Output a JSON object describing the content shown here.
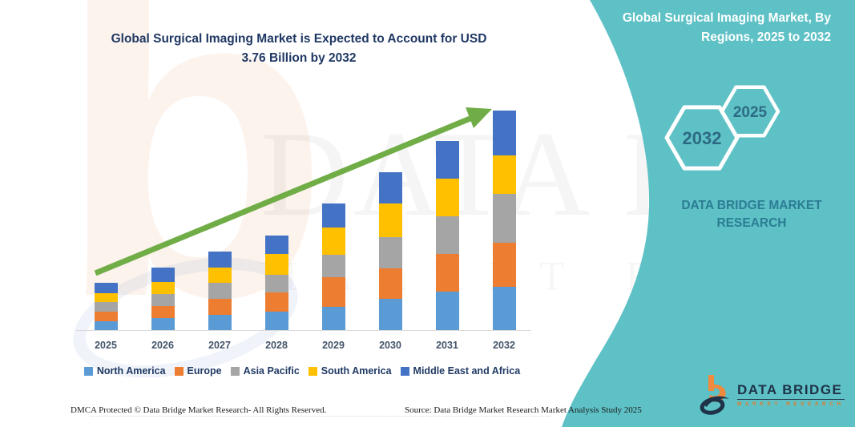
{
  "title": {
    "line1": "Global Surgical Imaging Market is Expected to Account for USD",
    "line2": "3.76 Billion by 2032"
  },
  "panel": {
    "heading_line1": "Global Surgical Imaging Market, By",
    "heading_line2": "Regions, 2025 to 2032",
    "hexagons": [
      {
        "label": "2032"
      },
      {
        "label": "2025"
      }
    ],
    "brand_line1": "DATA BRIDGE MARKET",
    "brand_line2": "RESEARCH",
    "panel_color": "#5ec1c6"
  },
  "chart_data": {
    "type": "bar",
    "stacked": true,
    "unit": "USD Billion",
    "title": "Global Surgical Imaging Market, By Regions, 2025 to 2032",
    "annotation": "USD 3.76 Billion by 2032",
    "categories": [
      "2025",
      "2026",
      "2027",
      "2028",
      "2029",
      "2030",
      "2031",
      "2032"
    ],
    "series": [
      {
        "name": "North America",
        "color": "#5b9bd5",
        "values": [
          0.15,
          0.2,
          0.26,
          0.32,
          0.4,
          0.53,
          0.66,
          0.74
        ]
      },
      {
        "name": "Europe",
        "color": "#ed7d31",
        "values": [
          0.17,
          0.21,
          0.27,
          0.33,
          0.51,
          0.52,
          0.64,
          0.75
        ]
      },
      {
        "name": "Asia Pacific",
        "color": "#a5a5a5",
        "values": [
          0.17,
          0.21,
          0.27,
          0.31,
          0.38,
          0.54,
          0.65,
          0.84
        ]
      },
      {
        "name": "South America",
        "color": "#ffc000",
        "values": [
          0.15,
          0.21,
          0.26,
          0.35,
          0.46,
          0.58,
          0.65,
          0.66
        ]
      },
      {
        "name": "Middle East and Africa",
        "color": "#4472c4",
        "values": [
          0.18,
          0.24,
          0.28,
          0.31,
          0.41,
          0.53,
          0.64,
          0.77
        ]
      }
    ],
    "totals": [
      0.82,
      1.07,
      1.34,
      1.62,
      2.16,
      2.7,
      3.24,
      3.76
    ],
    "ylim": [
      0,
      4.0
    ],
    "grid": false,
    "legend_position": "bottom",
    "trend_arrow_color": "#70ad47"
  },
  "footer": {
    "left": "DMCA Protected © Data Bridge Market Research-  All Rights Reserved.",
    "right": "Source: Data Bridge Market Research  Market Analysis Study 2025"
  },
  "logo": {
    "name": "DATA BRIDGE",
    "tagline": "MARKET RESEARCH"
  },
  "watermark": {
    "letter": "b",
    "text": "DATA BRIDGE",
    "subtext": "MARKET RESEARCH"
  },
  "colors": {
    "title_text": "#1f3864",
    "axis_label": "#44546a",
    "legend_label": "#203a64",
    "panel_teal": "#5ec1c6",
    "brand_on_panel": "#2b7d93",
    "logo_navy": "#1e3248",
    "logo_orange": "#e87722"
  }
}
